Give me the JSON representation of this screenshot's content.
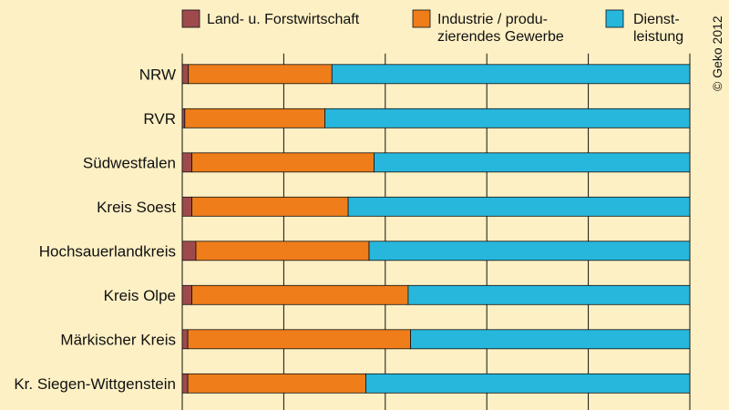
{
  "chart_data": {
    "type": "bar",
    "orientation": "horizontal",
    "stacked": true,
    "percent_stacked": true,
    "categories": [
      "NRW",
      "RVR",
      "Südwestfalen",
      "Kreis Soest",
      "Hochsauerlandkreis",
      "Kreis Olpe",
      "Märkischer Kreis",
      "Kr. Siegen-Wittgenstein"
    ],
    "series": [
      {
        "name": "Land- u. Forstwirtschaft",
        "values": [
          1.2,
          0.5,
          1.9,
          1.9,
          2.7,
          1.9,
          1.1,
          1.1
        ]
      },
      {
        "name": "Industrie/produ-zierendes Gewerbe",
        "values": [
          28.3,
          27.6,
          35.9,
          30.8,
          34.1,
          42.6,
          43.9,
          35.1
        ]
      },
      {
        "name": "Dienst-leistung",
        "values": [
          70.5,
          71.9,
          62.2,
          67.3,
          63.2,
          55.5,
          55.0,
          63.8
        ]
      }
    ],
    "legend": [
      {
        "lines": [
          "Land- u. Forstwirtschaft"
        ]
      },
      {
        "lines": [
          "Industrie / produ-",
          "zierendes Gewerbe"
        ]
      },
      {
        "lines": [
          "Dienst-",
          "leistung"
        ]
      }
    ],
    "xlim": [
      0,
      100
    ],
    "grid": true,
    "legend_position": "top",
    "colors": [
      "#9e4a4d",
      "#ee7d1a",
      "#27b7dc"
    ],
    "background": "#fdf0c4",
    "credit": "© Geko 2012"
  }
}
